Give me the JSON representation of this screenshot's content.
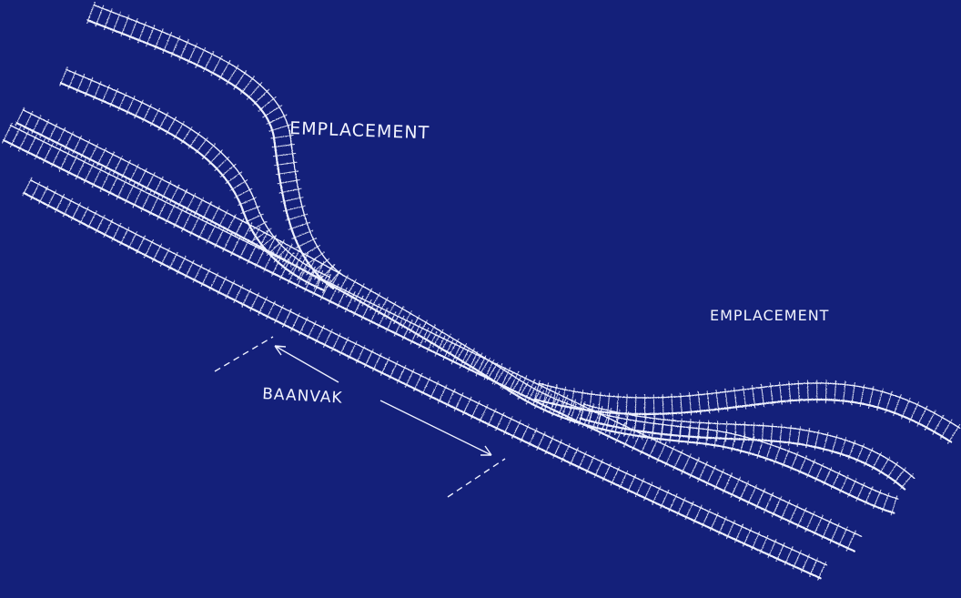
{
  "colors": {
    "background": "#14207a",
    "ink": "#f2f4ff"
  },
  "labels": {
    "emplacement_top": "EMPLACEMENT",
    "emplacement_right": "EMPLACEMENT",
    "baanvak": "BAANVAK"
  }
}
